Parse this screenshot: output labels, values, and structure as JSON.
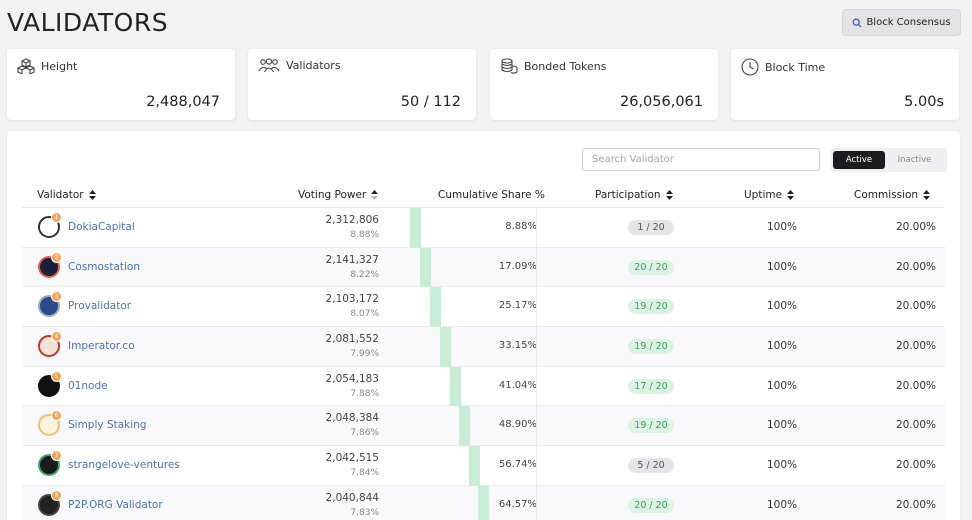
{
  "page": {
    "title": "VALIDATORS"
  },
  "header_button": {
    "label": "Block Consensus",
    "icon": "search-icon"
  },
  "stats": [
    {
      "label": "Height",
      "value": "2,488,047",
      "icon": "blocks-icon"
    },
    {
      "label": "Validators",
      "value": "50 / 112",
      "icon": "people-icon"
    },
    {
      "label": "Bonded Tokens",
      "value": "26,056,061",
      "icon": "coins-icon"
    },
    {
      "label": "Block Time",
      "value": "5.00s",
      "icon": "clock-icon"
    }
  ],
  "search": {
    "placeholder": "Search Validator",
    "value": ""
  },
  "toggle": {
    "active_label": "Active",
    "inactive_label": "Inactive",
    "selected": "Active"
  },
  "table": {
    "columns": {
      "validator": "Validator",
      "voting_power": "Voting Power",
      "cumulative": "Cumulative Share %",
      "participation": "Participation",
      "uptime": "Uptime",
      "commission": "Commission"
    },
    "rows": [
      {
        "rank": "1",
        "name": "DokiaCapital",
        "vp": "2,312,806",
        "vp_pct": "8.88%",
        "cum": "8.88%",
        "cum_value": 8.88,
        "participation": "1 / 20",
        "part_status": "gray",
        "uptime": "100%",
        "commission": "20.00%",
        "avatar_color": "#ffffff",
        "avatar_ring": "#333333"
      },
      {
        "rank": "2",
        "name": "Cosmostation",
        "vp": "2,141,327",
        "vp_pct": "8.22%",
        "cum": "17.09%",
        "cum_value": 17.09,
        "participation": "20 / 20",
        "part_status": "green",
        "uptime": "100%",
        "commission": "20.00%",
        "avatar_color": "#1a1f3a",
        "avatar_ring": "#e0604a"
      },
      {
        "rank": "3",
        "name": "Provalidator",
        "vp": "2,103,172",
        "vp_pct": "8.07%",
        "cum": "25.17%",
        "cum_value": 25.17,
        "participation": "19 / 20",
        "part_status": "green",
        "uptime": "100%",
        "commission": "20.00%",
        "avatar_color": "#2b4a8a",
        "avatar_ring": "#9aa8c8"
      },
      {
        "rank": "4",
        "name": "Imperator.co",
        "vp": "2,081,552",
        "vp_pct": "7.99%",
        "cum": "33.15%",
        "cum_value": 33.15,
        "participation": "19 / 20",
        "part_status": "green",
        "uptime": "100%",
        "commission": "20.00%",
        "avatar_color": "#f3e2d6",
        "avatar_ring": "#c0392b"
      },
      {
        "rank": "5",
        "name": "01node",
        "vp": "2,054,183",
        "vp_pct": "7.88%",
        "cum": "41.04%",
        "cum_value": 41.04,
        "participation": "17 / 20",
        "part_status": "green",
        "uptime": "100%",
        "commission": "20.00%",
        "avatar_color": "#111111",
        "avatar_ring": "#111111"
      },
      {
        "rank": "6",
        "name": "Simply Staking",
        "vp": "2,048,384",
        "vp_pct": "7.86%",
        "cum": "48.90%",
        "cum_value": 48.9,
        "participation": "19 / 20",
        "part_status": "green",
        "uptime": "100%",
        "commission": "20.00%",
        "avatar_color": "#fbf3df",
        "avatar_ring": "#e9c27a"
      },
      {
        "rank": "7",
        "name": "strangelove-ventures",
        "vp": "2,042,515",
        "vp_pct": "7.84%",
        "cum": "56.74%",
        "cum_value": 56.74,
        "participation": "5 / 20",
        "part_status": "gray",
        "uptime": "100%",
        "commission": "20.00%",
        "avatar_color": "#1b1b1b",
        "avatar_ring": "#3fa66a"
      },
      {
        "rank": "8",
        "name": "P2P.ORG Validator",
        "vp": "2,040,844",
        "vp_pct": "7.83%",
        "cum": "64.57%",
        "cum_value": 64.57,
        "participation": "20 / 20",
        "part_status": "green",
        "uptime": "100%",
        "commission": "20.00%",
        "avatar_color": "#222222",
        "avatar_ring": "#444444"
      }
    ]
  }
}
